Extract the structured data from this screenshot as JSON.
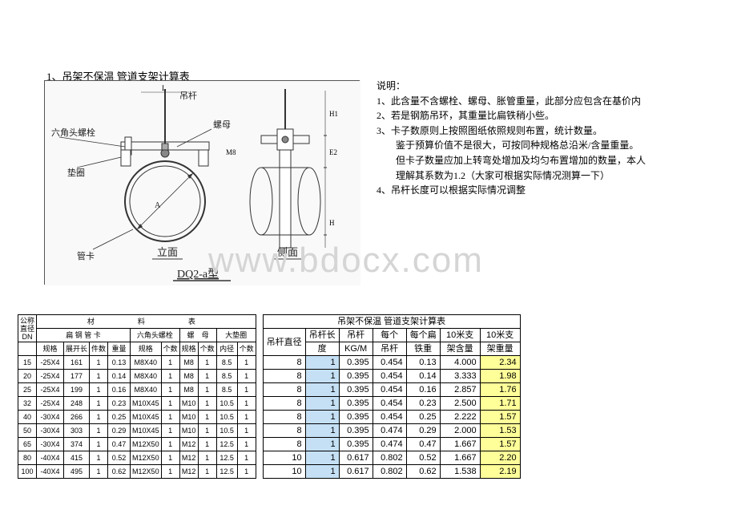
{
  "title": "1、吊架不保温 管道支架计算表",
  "notes_heading": "说明：",
  "notes": [
    "1、此含量不含螺栓、螺母、胀管重量，此部分应包含在基价内",
    "2、若是钢筋吊环，其重量比扁铁稍小些。",
    "3、卡子数原则上按照图纸依照规则布置，统计数量。",
    "　　鉴于预算价值不是很大，可按同种规格总沿米/含量重量。",
    "　　但卡子数量应加上转弯处增加及均匀布置增加的数量，本人",
    "　　理解其系数为1.2（大家可根据实际情况测算一下）",
    "4、吊杆长度可以根据实际情况调整"
  ],
  "watermark": "www.bdocx.com",
  "diagram_labels": {
    "hanger": "吊杆",
    "hexbolt": "六角头螺栓",
    "nut": "螺母",
    "washer": "垫圈",
    "clamp": "管卡",
    "front": "立面",
    "side": "侧面",
    "model": "DQ2-a型"
  },
  "material_table": {
    "top_title": "材　　料　　表",
    "group_headers": [
      "扁 钢 管 卡",
      "六角头螺栓",
      "螺　母",
      "大垫圈"
    ],
    "dn_label_top": "公称",
    "dn_label_bot": "直径",
    "dn_label_bot2": "DN",
    "sub_headers": [
      "规格",
      "展开长",
      "件数",
      "重量",
      "规格",
      "个数",
      "规格",
      "个数",
      "内径",
      "个数"
    ],
    "rows": [
      {
        "dn": "15",
        "spec": "-25X4",
        "len": "161",
        "pcs": "1",
        "wt": "0.13",
        "hex": "M8X40",
        "hn": "1",
        "nut": "M8",
        "nn": "1",
        "pad": "8.5",
        "pn": "1"
      },
      {
        "dn": "20",
        "spec": "-25X4",
        "len": "177",
        "pcs": "1",
        "wt": "0.14",
        "hex": "M8X40",
        "hn": "1",
        "nut": "M8",
        "nn": "1",
        "pad": "8.5",
        "pn": "1"
      },
      {
        "dn": "25",
        "spec": "-25X4",
        "len": "199",
        "pcs": "1",
        "wt": "0.16",
        "hex": "M8X40",
        "hn": "1",
        "nut": "M8",
        "nn": "1",
        "pad": "8.5",
        "pn": "1"
      },
      {
        "dn": "32",
        "spec": "-25X4",
        "len": "248",
        "pcs": "1",
        "wt": "0.23",
        "hex": "M10X45",
        "hn": "1",
        "nut": "M10",
        "nn": "1",
        "pad": "10.5",
        "pn": "1"
      },
      {
        "dn": "40",
        "spec": "-30X4",
        "len": "266",
        "pcs": "1",
        "wt": "0.25",
        "hex": "M10X45",
        "hn": "1",
        "nut": "M10",
        "nn": "1",
        "pad": "10.5",
        "pn": "1"
      },
      {
        "dn": "50",
        "spec": "-30X4",
        "len": "303",
        "pcs": "1",
        "wt": "0.29",
        "hex": "M10X45",
        "hn": "1",
        "nut": "M10",
        "nn": "1",
        "pad": "10.5",
        "pn": "1"
      },
      {
        "dn": "65",
        "spec": "-30X4",
        "len": "374",
        "pcs": "1",
        "wt": "0.47",
        "hex": "M12X50",
        "hn": "1",
        "nut": "M12",
        "nn": "1",
        "pad": "12.5",
        "pn": "1"
      },
      {
        "dn": "80",
        "spec": "-40X4",
        "len": "415",
        "pcs": "1",
        "wt": "0.52",
        "hex": "M12X50",
        "hn": "1",
        "nut": "M12",
        "nn": "1",
        "pad": "12.5",
        "pn": "1"
      },
      {
        "dn": "100",
        "spec": "-40X4",
        "len": "495",
        "pcs": "1",
        "wt": "0.62",
        "hex": "M12X50",
        "hn": "1",
        "nut": "M12",
        "nn": "1",
        "pad": "12.5",
        "pn": "1"
      }
    ]
  },
  "calc_table": {
    "title": "吊架不保温 管道支架计算表",
    "headers": [
      "吊杆直径",
      "吊杆长度",
      "吊杆KG/M",
      "每个吊杆",
      "每个扁铁重",
      "10米支架含量",
      "10米支架重量"
    ],
    "rows": [
      {
        "dia": "8",
        "len": "1",
        "kgm": "0.395",
        "each": "0.454",
        "flat": "0.13",
        "per10": "4.000",
        "wt10": "2.34"
      },
      {
        "dia": "8",
        "len": "1",
        "kgm": "0.395",
        "each": "0.454",
        "flat": "0.14",
        "per10": "3.333",
        "wt10": "1.98"
      },
      {
        "dia": "8",
        "len": "1",
        "kgm": "0.395",
        "each": "0.454",
        "flat": "0.16",
        "per10": "2.857",
        "wt10": "1.76"
      },
      {
        "dia": "8",
        "len": "1",
        "kgm": "0.395",
        "each": "0.454",
        "flat": "0.23",
        "per10": "2.500",
        "wt10": "1.71"
      },
      {
        "dia": "8",
        "len": "1",
        "kgm": "0.395",
        "each": "0.454",
        "flat": "0.25",
        "per10": "2.222",
        "wt10": "1.57"
      },
      {
        "dia": "8",
        "len": "1",
        "kgm": "0.395",
        "each": "0.474",
        "flat": "0.29",
        "per10": "2.000",
        "wt10": "1.53"
      },
      {
        "dia": "8",
        "len": "1",
        "kgm": "0.395",
        "each": "0.474",
        "flat": "0.47",
        "per10": "1.667",
        "wt10": "1.57"
      },
      {
        "dia": "10",
        "len": "1",
        "kgm": "0.617",
        "each": "0.802",
        "flat": "0.52",
        "per10": "1.667",
        "wt10": "2.20"
      },
      {
        "dia": "10",
        "len": "1",
        "kgm": "0.617",
        "each": "0.802",
        "flat": "0.62",
        "per10": "1.538",
        "wt10": "2.19"
      }
    ]
  }
}
